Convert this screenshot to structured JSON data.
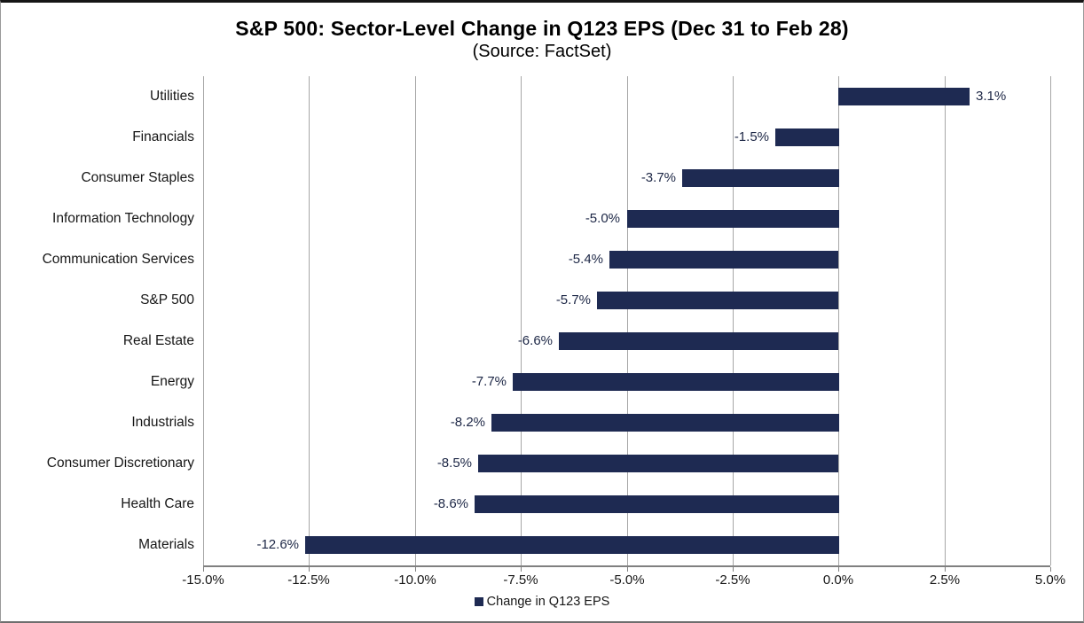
{
  "title": "S&P 500: Sector-Level Change in Q123 EPS (Dec 31 to Feb 28)",
  "subtitle": "(Source: FactSet)",
  "colors": {
    "bar": "#1e2a52",
    "gridline": "#a6a6a6",
    "axis_line": "#808080",
    "value_label": "#1c2645",
    "text": "#161616"
  },
  "legend": {
    "label": "Change in Q123 EPS",
    "swatch_color": "#1e2a52",
    "position": "bottom"
  },
  "chart_data": {
    "type": "bar",
    "orientation": "horizontal",
    "title": "S&P 500: Sector-Level Change in Q123 EPS (Dec 31 to Feb 28)",
    "subtitle": "(Source: FactSet)",
    "categories": [
      "Utilities",
      "Financials",
      "Consumer Staples",
      "Information Technology",
      "Communication Services",
      "S&P 500",
      "Real Estate",
      "Energy",
      "Industrials",
      "Consumer Discretionary",
      "Health Care",
      "Materials"
    ],
    "values": [
      3.1,
      -1.5,
      -3.7,
      -5.0,
      -5.4,
      -5.7,
      -6.6,
      -7.7,
      -8.2,
      -8.5,
      -8.6,
      -12.6
    ],
    "value_labels": [
      "3.1%",
      "-1.5%",
      "-3.7%",
      "-5.0%",
      "-5.4%",
      "-5.7%",
      "-6.6%",
      "-7.7%",
      "-8.2%",
      "-8.5%",
      "-8.6%",
      "-12.6%"
    ],
    "series_name": "Change in Q123 EPS",
    "xlabel": "",
    "ylabel": "",
    "xlim": [
      -15.0,
      5.0
    ],
    "xtick_step": 2.5,
    "xtick_labels": [
      "-15.0%",
      "-12.5%",
      "-10.0%",
      "-7.5%",
      "-5.0%",
      "-2.5%",
      "0.0%",
      "2.5%",
      "5.0%"
    ],
    "grid": "vertical",
    "legend_position": "bottom"
  }
}
